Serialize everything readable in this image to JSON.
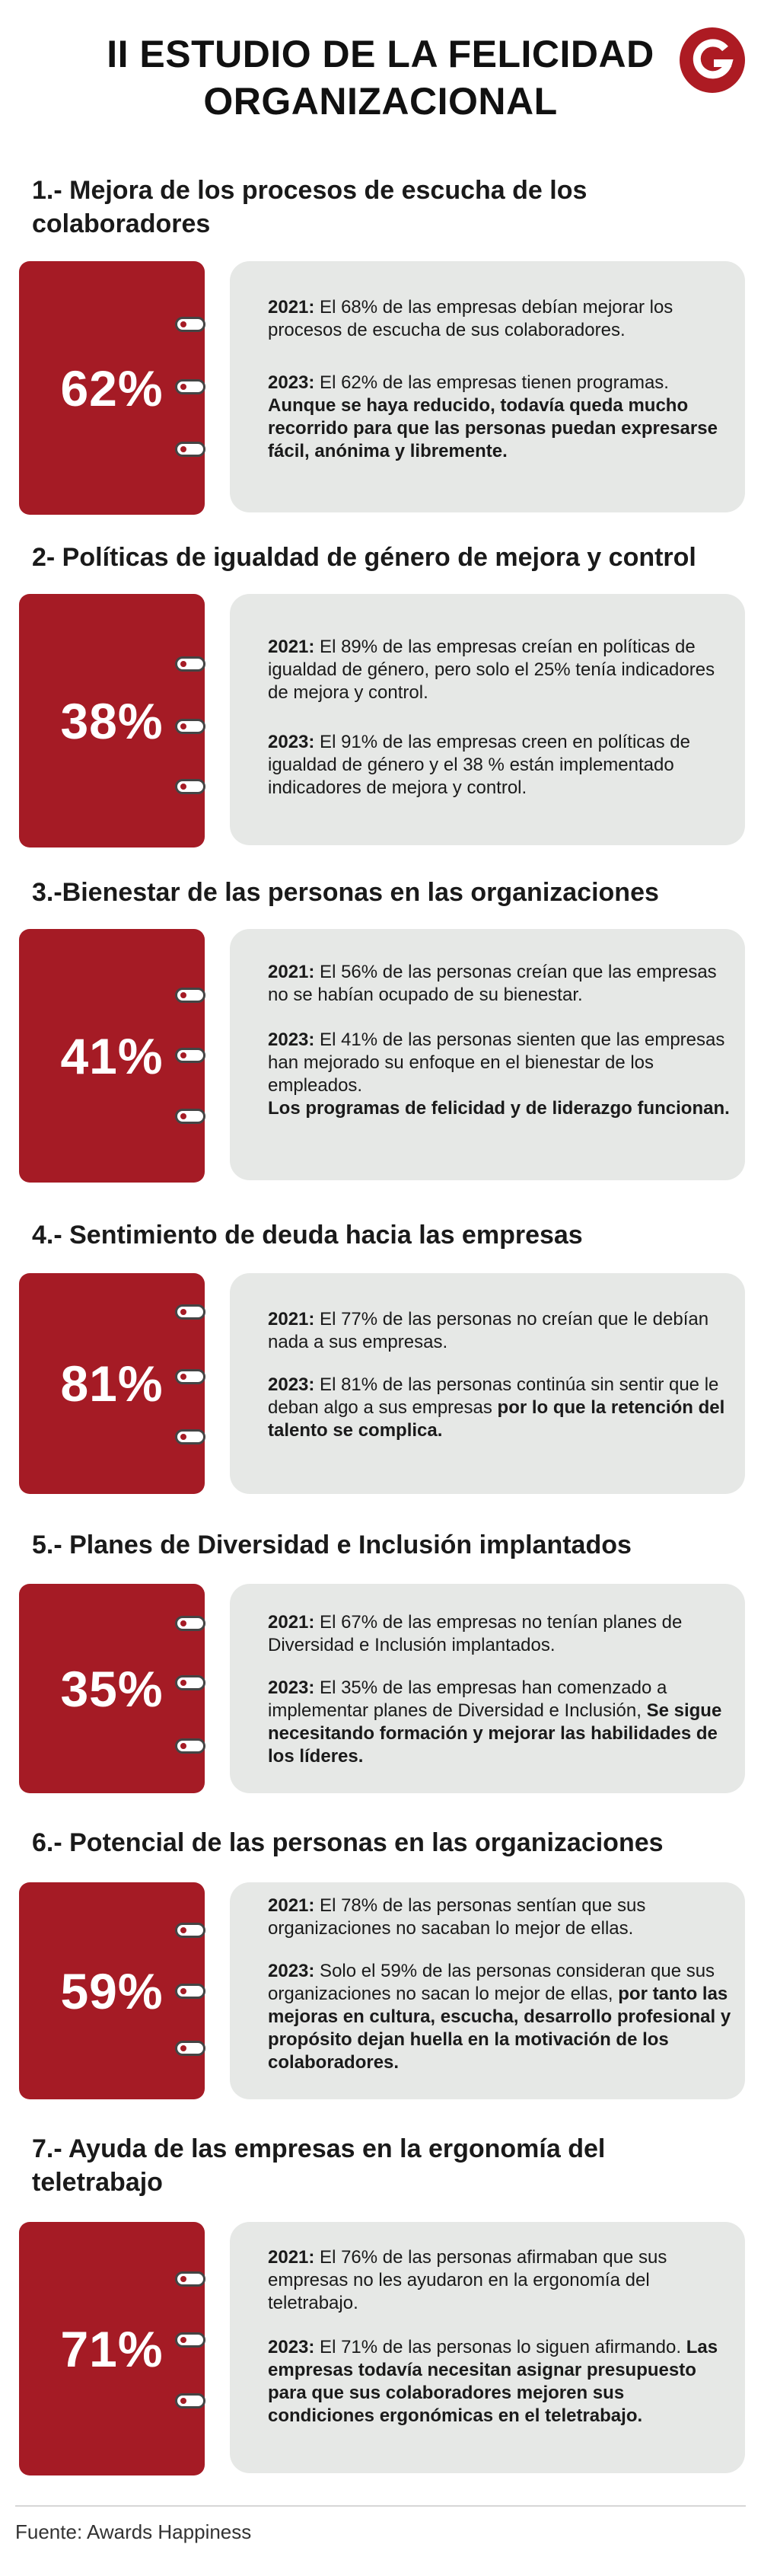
{
  "title": {
    "line1": "II ESTUDIO DE LA FELICIDAD",
    "line2": "ORGANIZACIONAL"
  },
  "logo": {
    "letter": "G",
    "color": "#ad1b23"
  },
  "colors": {
    "accent": "#a51b25",
    "panel": "#e6e8e6"
  },
  "sections": [
    {
      "title": "1.- Mejora de los procesos de escucha de los colaboradores",
      "percent": "62%",
      "y2021_label": "2021:",
      "y2021_text": " El 68% de las empresas debían mejorar los procesos de escucha de sus colaboradores.",
      "y2023_label": "2023:",
      "y2023_text": " El 62% de las empresas tienen programas. ",
      "y2023_bold": "Aunque se haya reducido, todavía queda mucho recorrido para que las personas puedan expresarse fácil, anónima y libremente."
    },
    {
      "title": "2- Políticas de igualdad de género de mejora y control",
      "percent": "38%",
      "y2021_label": "2021:",
      "y2021_text": " El 89% de las empresas creían en políticas de igualdad de género, pero solo el 25% tenía indicadores de mejora y control.",
      "y2023_label": "2023:",
      "y2023_text": " El 91% de las empresas creen en políticas de igualdad de género y el 38 % están implementado indicadores de mejora y control.",
      "y2023_bold": ""
    },
    {
      "title": "3.-Bienestar de las personas en las organizaciones",
      "percent": "41%",
      "y2021_label": "2021:",
      "y2021_text": " El 56% de las personas creían que las empresas no se habían ocupado de su bienestar.",
      "y2023_label": "2023:",
      "y2023_text": " El 41% de las personas sienten que las empresas han mejorado su enfoque en el bienestar de los empleados.",
      "y2023_bold": "Los programas de felicidad y de liderazgo funcionan."
    },
    {
      "title": "4.- Sentimiento de deuda hacia las empresas",
      "percent": "81%",
      "y2021_label": "2021:",
      "y2021_text": " El 77% de las personas no creían que le debían nada a sus empresas.",
      "y2023_label": "2023:",
      "y2023_text": " El 81% de las personas continúa sin sentir que le deban algo a sus empresas ",
      "y2023_bold": "por lo que la retención del talento se complica."
    },
    {
      "title": "5.- Planes de Diversidad e Inclusión implantados",
      "percent": "35%",
      "y2021_label": "2021:",
      "y2021_text": " El 67% de las empresas no tenían planes de Diversidad e Inclusión implantados.",
      "y2023_label": "2023:",
      "y2023_text": " El 35% de las empresas han comenzado a implementar planes de Diversidad e Inclusión, ",
      "y2023_bold": "Se sigue necesitando formación y mejorar las habilidades de los líderes."
    },
    {
      "title": "6.- Potencial de las personas en las organizaciones",
      "percent": "59%",
      "y2021_label": "2021:",
      "y2021_text": " El 78% de las personas sentían que sus organizaciones no sacaban lo mejor de ellas.",
      "y2023_label": "2023:",
      "y2023_text": " Solo el 59% de las personas consideran que sus organizaciones no sacan lo mejor de ellas, ",
      "y2023_bold": "por tanto las mejoras en cultura, escucha, desarrollo profesional y propósito dejan huella en la motivación de los colaboradores."
    },
    {
      "title": "7.- Ayuda de las empresas en la ergonomía del teletrabajo",
      "percent": "71%",
      "y2021_label": "2021:",
      "y2021_text": " El 76% de las personas afirmaban que sus empresas no les ayudaron en la ergonomía del teletrabajo.",
      "y2023_label": "2023:",
      "y2023_text": " El 71% de las personas lo siguen afirmando. ",
      "y2023_bold": "Las empresas todavía necesitan asignar presupuesto para que sus colaboradores mejoren sus condiciones ergonómicas en el teletrabajo."
    }
  ],
  "source": "Fuente: Awards Happiness"
}
